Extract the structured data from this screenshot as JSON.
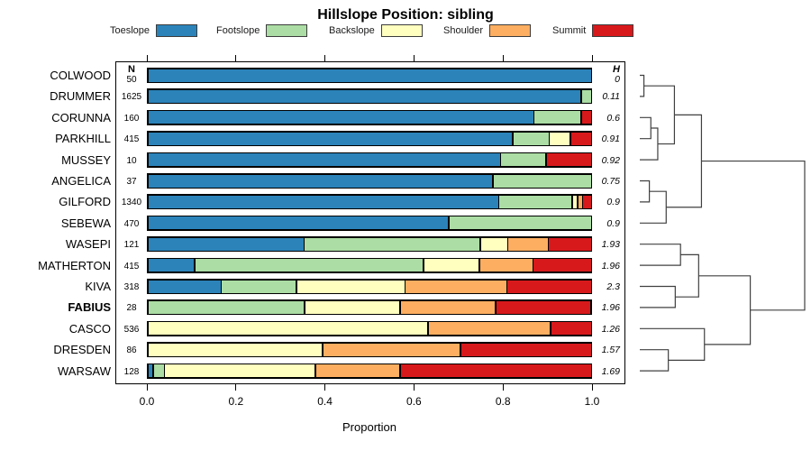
{
  "title": "Hillslope Position: sibling",
  "chart_data": {
    "type": "bar",
    "stacked": true,
    "orientation": "horizontal",
    "title": "Hillslope Position: sibling",
    "xlabel": "Proportion",
    "xlim": [
      0,
      1
    ],
    "x_ticks": [
      "0.0",
      "0.2",
      "0.4",
      "0.6",
      "0.8",
      "1.0"
    ],
    "grid": false,
    "legend_position": "top",
    "legend": [
      {
        "label": "Toeslope",
        "color": "#2b83ba"
      },
      {
        "label": "Footslope",
        "color": "#abdda4"
      },
      {
        "label": "Backslope",
        "color": "#ffffbf"
      },
      {
        "label": "Shoulder",
        "color": "#fdae61"
      },
      {
        "label": "Summit",
        "color": "#d7191c"
      }
    ],
    "columns": {
      "left_header": "N",
      "right_header": "H"
    },
    "rows": [
      {
        "name": "COLWOOD",
        "n": "50",
        "h": "0",
        "bold": false,
        "values": [
          1,
          0,
          0,
          0,
          0
        ]
      },
      {
        "name": "DRUMMER",
        "n": "1625",
        "h": "0.11",
        "bold": false,
        "values": [
          0.98,
          0.02,
          0,
          0,
          0
        ]
      },
      {
        "name": "CORUNNA",
        "n": "160",
        "h": "0.6",
        "bold": false,
        "values": [
          0.875,
          0.105,
          0,
          0,
          0.02
        ]
      },
      {
        "name": "PARKHILL",
        "n": "415",
        "h": "0.91",
        "bold": false,
        "values": [
          0.83,
          0.08,
          0.045,
          0,
          0.045
        ]
      },
      {
        "name": "MUSSEY",
        "n": "10",
        "h": "0.92",
        "bold": false,
        "values": [
          0.8,
          0.1,
          0,
          0,
          0.1
        ]
      },
      {
        "name": "ANGELICA",
        "n": "37",
        "h": "0.75",
        "bold": false,
        "values": [
          0.78,
          0.22,
          0,
          0,
          0
        ]
      },
      {
        "name": "GILFORD",
        "n": "1340",
        "h": "0.9",
        "bold": false,
        "values": [
          0.8,
          0.165,
          0.01,
          0.008,
          0.017
        ]
      },
      {
        "name": "SEBEWA",
        "n": "470",
        "h": "0.9",
        "bold": false,
        "values": [
          0.68,
          0.32,
          0,
          0,
          0
        ]
      },
      {
        "name": "WASEPI",
        "n": "121",
        "h": "1.93",
        "bold": false,
        "values": [
          0.355,
          0.4,
          0.06,
          0.09,
          0.095
        ]
      },
      {
        "name": "MATHERTON",
        "n": "415",
        "h": "1.96",
        "bold": false,
        "values": [
          0.105,
          0.52,
          0.125,
          0.12,
          0.13
        ]
      },
      {
        "name": "KIVA",
        "n": "318",
        "h": "2.3",
        "bold": false,
        "values": [
          0.165,
          0.17,
          0.245,
          0.23,
          0.19
        ]
      },
      {
        "name": "FABIUS",
        "n": "28",
        "h": "1.96",
        "bold": true,
        "values": [
          0,
          0.355,
          0.215,
          0.215,
          0.215
        ]
      },
      {
        "name": "CASCO",
        "n": "536",
        "h": "1.26",
        "bold": false,
        "values": [
          0,
          0,
          0.635,
          0.275,
          0.09
        ]
      },
      {
        "name": "DRESDEN",
        "n": "86",
        "h": "1.57",
        "bold": false,
        "values": [
          0,
          0,
          0.395,
          0.31,
          0.295
        ]
      },
      {
        "name": "WARSAW",
        "n": "128",
        "h": "1.69",
        "bold": false,
        "values": [
          0.01,
          0.022,
          0.343,
          0.19,
          0.435
        ]
      }
    ],
    "dendrogram": {
      "merges": [
        {
          "id": "m1",
          "a": "COLWOOD",
          "b": "DRUMMER",
          "h": 0.025
        },
        {
          "id": "m2",
          "a": "CORUNNA",
          "b": "PARKHILL",
          "h": 0.067
        },
        {
          "id": "m3",
          "a": "m2",
          "b": "MUSSEY",
          "h": 0.109
        },
        {
          "id": "m4",
          "a": "m1",
          "b": "m3",
          "h": 0.21
        },
        {
          "id": "m5",
          "a": "ANGELICA",
          "b": "GILFORD",
          "h": 0.058
        },
        {
          "id": "m6",
          "a": "m5",
          "b": "SEBEWA",
          "h": 0.16
        },
        {
          "id": "m7",
          "a": "m4",
          "b": "m6",
          "h": 0.374
        },
        {
          "id": "m8",
          "a": "WASEPI",
          "b": "MATHERTON",
          "h": 0.247
        },
        {
          "id": "m9",
          "a": "KIVA",
          "b": "FABIUS",
          "h": 0.215
        },
        {
          "id": "m10",
          "a": "m8",
          "b": "m9",
          "h": 0.357
        },
        {
          "id": "m11",
          "a": "DRESDEN",
          "b": "WARSAW",
          "h": 0.173
        },
        {
          "id": "m12",
          "a": "CASCO",
          "b": "m11",
          "h": 0.392
        },
        {
          "id": "m13",
          "a": "m10",
          "b": "m12",
          "h": 0.67
        },
        {
          "id": "m14",
          "a": "m7",
          "b": "m13",
          "h": 1.0
        }
      ]
    }
  }
}
